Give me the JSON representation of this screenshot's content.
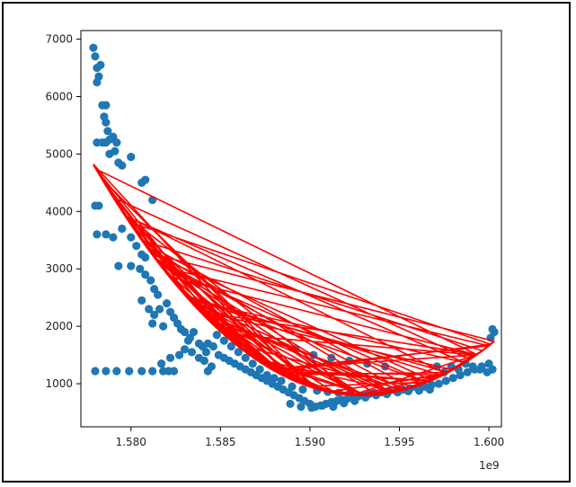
{
  "chart_data": {
    "type": "scatter",
    "title": "",
    "xlabel": "",
    "ylabel": "",
    "x_offset_label": "1e9",
    "xlim": [
      1.5772,
      1.6007
    ],
    "ylim": [
      250,
      7150
    ],
    "grid": false,
    "legend": "none",
    "x_ticks": [
      1.58,
      1.585,
      1.59,
      1.595,
      1.6
    ],
    "x_tick_labels": [
      "1.580",
      "1.585",
      "1.590",
      "1.595",
      "1.600"
    ],
    "y_ticks": [
      1000,
      2000,
      3000,
      4000,
      5000,
      6000,
      7000
    ],
    "y_tick_labels": [
      "1000",
      "2000",
      "3000",
      "4000",
      "5000",
      "6000",
      "7000"
    ],
    "scatter_color": "#1f77b4",
    "scatter_points": [
      [
        1.5779,
        6850
      ],
      [
        1.578,
        6700
      ],
      [
        1.5781,
        6500
      ],
      [
        1.5783,
        6550
      ],
      [
        1.5782,
        6350
      ],
      [
        1.5781,
        6250
      ],
      [
        1.5784,
        5850
      ],
      [
        1.5786,
        5850
      ],
      [
        1.5785,
        5650
      ],
      [
        1.5786,
        5550
      ],
      [
        1.5781,
        5200
      ],
      [
        1.5784,
        5200
      ],
      [
        1.5786,
        5200
      ],
      [
        1.5787,
        5400
      ],
      [
        1.5788,
        5250
      ],
      [
        1.579,
        5300
      ],
      [
        1.5792,
        5200
      ],
      [
        1.5791,
        5050
      ],
      [
        1.5788,
        5000
      ],
      [
        1.5793,
        4850
      ],
      [
        1.5795,
        4800
      ],
      [
        1.58,
        4950
      ],
      [
        1.5806,
        4500
      ],
      [
        1.5808,
        4550
      ],
      [
        1.5812,
        4200
      ],
      [
        1.578,
        4100
      ],
      [
        1.5782,
        4100
      ],
      [
        1.5786,
        3600
      ],
      [
        1.5781,
        3600
      ],
      [
        1.579,
        3550
      ],
      [
        1.5795,
        3700
      ],
      [
        1.58,
        3550
      ],
      [
        1.5803,
        3400
      ],
      [
        1.5806,
        3250
      ],
      [
        1.5808,
        3200
      ],
      [
        1.5793,
        3050
      ],
      [
        1.58,
        3050
      ],
      [
        1.5805,
        3000
      ],
      [
        1.5808,
        2900
      ],
      [
        1.5811,
        2800
      ],
      [
        1.5813,
        2650
      ],
      [
        1.5815,
        2550
      ],
      [
        1.5806,
        2450
      ],
      [
        1.581,
        2300
      ],
      [
        1.5813,
        2200
      ],
      [
        1.5816,
        2300
      ],
      [
        1.5812,
        2050
      ],
      [
        1.582,
        2400
      ],
      [
        1.5822,
        2250
      ],
      [
        1.5824,
        2150
      ],
      [
        1.5826,
        2050
      ],
      [
        1.5818,
        2000
      ],
      [
        1.5828,
        1950
      ],
      [
        1.583,
        1900
      ],
      [
        1.5833,
        1800
      ],
      [
        1.5835,
        1900
      ],
      [
        1.5832,
        1750
      ],
      [
        1.5838,
        1700
      ],
      [
        1.584,
        1650
      ],
      [
        1.5843,
        1700
      ],
      [
        1.5846,
        1650
      ],
      [
        1.5842,
        1550
      ],
      [
        1.5849,
        1500
      ],
      [
        1.5852,
        1450
      ],
      [
        1.5855,
        1400
      ],
      [
        1.5858,
        1350
      ],
      [
        1.5861,
        1300
      ],
      [
        1.5864,
        1250
      ],
      [
        1.5867,
        1200
      ],
      [
        1.587,
        1150
      ],
      [
        1.5873,
        1100
      ],
      [
        1.5876,
        1050
      ],
      [
        1.5879,
        1000
      ],
      [
        1.5882,
        950
      ],
      [
        1.5885,
        900
      ],
      [
        1.5888,
        850
      ],
      [
        1.5891,
        800
      ],
      [
        1.5894,
        750
      ],
      [
        1.5897,
        700
      ],
      [
        1.59,
        650
      ],
      [
        1.5903,
        600
      ],
      [
        1.5906,
        620
      ],
      [
        1.5909,
        650
      ],
      [
        1.5912,
        680
      ],
      [
        1.5915,
        700
      ],
      [
        1.5918,
        720
      ],
      [
        1.5921,
        740
      ],
      [
        1.5924,
        760
      ],
      [
        1.5927,
        780
      ],
      [
        1.593,
        800
      ],
      [
        1.5933,
        820
      ],
      [
        1.5936,
        840
      ],
      [
        1.594,
        850
      ],
      [
        1.5944,
        870
      ],
      [
        1.5948,
        880
      ],
      [
        1.5952,
        900
      ],
      [
        1.5956,
        920
      ],
      [
        1.596,
        930
      ],
      [
        1.5964,
        950
      ],
      [
        1.5968,
        980
      ],
      [
        1.5972,
        1000
      ],
      [
        1.5976,
        1050
      ],
      [
        1.598,
        1100
      ],
      [
        1.5984,
        1150
      ],
      [
        1.5988,
        1200
      ],
      [
        1.5992,
        1250
      ],
      [
        1.5996,
        1300
      ],
      [
        1.6,
        1350
      ],
      [
        1.6002,
        1250
      ],
      [
        1.6001,
        1800
      ],
      [
        1.6003,
        1900
      ],
      [
        1.6002,
        1950
      ],
      [
        1.5889,
        650
      ],
      [
        1.5895,
        600
      ],
      [
        1.5901,
        580
      ],
      [
        1.5907,
        620
      ],
      [
        1.5913,
        600
      ],
      [
        1.5919,
        660
      ],
      [
        1.5925,
        700
      ],
      [
        1.5931,
        760
      ],
      [
        1.5937,
        800
      ],
      [
        1.5943,
        820
      ],
      [
        1.5949,
        850
      ],
      [
        1.5955,
        870
      ],
      [
        1.5961,
        880
      ],
      [
        1.5967,
        900
      ],
      [
        1.5971,
        1300
      ],
      [
        1.5975,
        1200
      ],
      [
        1.5979,
        1300
      ],
      [
        1.5983,
        1250
      ],
      [
        1.5987,
        1350
      ],
      [
        1.5991,
        1300
      ],
      [
        1.5995,
        1250
      ],
      [
        1.5999,
        1200
      ],
      [
        1.5848,
        1850
      ],
      [
        1.5852,
        1750
      ],
      [
        1.5856,
        1650
      ],
      [
        1.586,
        1550
      ],
      [
        1.5864,
        1450
      ],
      [
        1.5868,
        1350
      ],
      [
        1.5872,
        1250
      ],
      [
        1.5876,
        1150
      ],
      [
        1.588,
        1100
      ],
      [
        1.5884,
        1050
      ],
      [
        1.578,
        1220
      ],
      [
        1.5786,
        1220
      ],
      [
        1.5792,
        1220
      ],
      [
        1.5799,
        1220
      ],
      [
        1.5806,
        1220
      ],
      [
        1.5812,
        1220
      ],
      [
        1.5818,
        1220
      ],
      [
        1.5821,
        1220
      ],
      [
        1.5824,
        1220
      ],
      [
        1.5843,
        1220
      ],
      [
        1.5817,
        1350
      ],
      [
        1.5822,
        1450
      ],
      [
        1.5827,
        1500
      ],
      [
        1.583,
        1600
      ],
      [
        1.5834,
        1550
      ],
      [
        1.5838,
        1450
      ],
      [
        1.5841,
        1400
      ],
      [
        1.5845,
        1300
      ],
      [
        1.5892,
        1600
      ],
      [
        1.5902,
        1500
      ],
      [
        1.5912,
        1450
      ],
      [
        1.5922,
        1400
      ],
      [
        1.5932,
        1350
      ],
      [
        1.5942,
        1300
      ],
      [
        1.589,
        950
      ],
      [
        1.5896,
        900
      ],
      [
        1.5904,
        880
      ],
      [
        1.591,
        860
      ],
      [
        1.5916,
        840
      ],
      [
        1.5922,
        830
      ]
    ],
    "line_color": "#ff0000",
    "fit_curve": {
      "start": [
        1.5779,
        4820
      ],
      "vertex": [
        1.5929,
        800
      ],
      "end": [
        1.6003,
        1740
      ],
      "segments": 120
    }
  }
}
